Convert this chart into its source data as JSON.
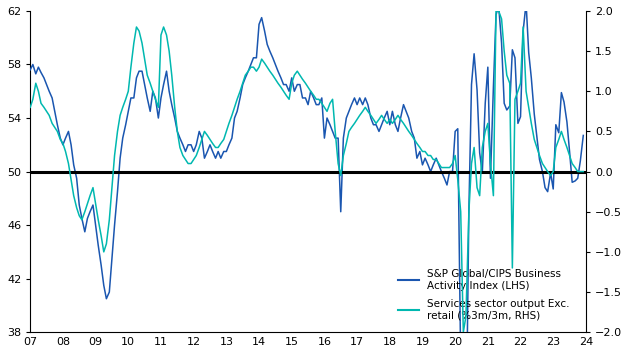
{
  "lhs_color": "#1a56b0",
  "rhs_color": "#00b8b0",
  "lhs_ylim": [
    38,
    62
  ],
  "rhs_ylim": [
    -2.0,
    2.0
  ],
  "lhs_yticks": [
    38,
    42,
    46,
    50,
    54,
    58,
    62
  ],
  "rhs_yticks": [
    -2.0,
    -1.5,
    -1.0,
    -0.5,
    0.0,
    0.5,
    1.0,
    1.5,
    2.0
  ],
  "xticks": [
    2007,
    2008,
    2009,
    2010,
    2011,
    2012,
    2013,
    2014,
    2015,
    2016,
    2017,
    2018,
    2019,
    2020,
    2021,
    2022,
    2023,
    2024
  ],
  "xlabels": [
    "07",
    "08",
    "09",
    "10",
    "11",
    "12",
    "13",
    "14",
    "15",
    "16",
    "17",
    "18",
    "19",
    "20",
    "21",
    "22",
    "23",
    "24"
  ],
  "legend_lhs": "S&P Global/CIPS Business\nActivity Index (LHS)",
  "legend_rhs": "Services sector output Exc.\nretail (%3m/3m, RHS)",
  "hline_y_lhs": 50,
  "lhs_data": [
    [
      2007.0,
      57.6
    ],
    [
      2007.08,
      58.0
    ],
    [
      2007.17,
      57.3
    ],
    [
      2007.25,
      57.8
    ],
    [
      2007.33,
      57.4
    ],
    [
      2007.42,
      57.0
    ],
    [
      2007.5,
      56.5
    ],
    [
      2007.58,
      56.0
    ],
    [
      2007.67,
      55.5
    ],
    [
      2007.75,
      54.5
    ],
    [
      2007.83,
      53.5
    ],
    [
      2007.92,
      52.5
    ],
    [
      2008.0,
      52.0
    ],
    [
      2008.08,
      52.5
    ],
    [
      2008.17,
      53.0
    ],
    [
      2008.25,
      52.0
    ],
    [
      2008.33,
      50.5
    ],
    [
      2008.42,
      49.5
    ],
    [
      2008.5,
      47.5
    ],
    [
      2008.58,
      46.5
    ],
    [
      2008.67,
      45.5
    ],
    [
      2008.75,
      46.5
    ],
    [
      2008.83,
      47.0
    ],
    [
      2008.92,
      47.5
    ],
    [
      2009.0,
      46.0
    ],
    [
      2009.08,
      44.5
    ],
    [
      2009.17,
      43.0
    ],
    [
      2009.25,
      41.5
    ],
    [
      2009.33,
      40.5
    ],
    [
      2009.42,
      41.0
    ],
    [
      2009.5,
      43.5
    ],
    [
      2009.58,
      46.0
    ],
    [
      2009.67,
      48.5
    ],
    [
      2009.75,
      51.0
    ],
    [
      2009.83,
      52.5
    ],
    [
      2009.92,
      53.5
    ],
    [
      2010.0,
      54.5
    ],
    [
      2010.08,
      55.5
    ],
    [
      2010.17,
      55.5
    ],
    [
      2010.25,
      57.0
    ],
    [
      2010.33,
      57.5
    ],
    [
      2010.42,
      57.5
    ],
    [
      2010.5,
      56.5
    ],
    [
      2010.58,
      55.5
    ],
    [
      2010.67,
      54.5
    ],
    [
      2010.75,
      56.0
    ],
    [
      2010.83,
      55.5
    ],
    [
      2010.92,
      54.0
    ],
    [
      2011.0,
      55.5
    ],
    [
      2011.08,
      56.5
    ],
    [
      2011.17,
      57.5
    ],
    [
      2011.25,
      56.0
    ],
    [
      2011.33,
      55.0
    ],
    [
      2011.42,
      54.0
    ],
    [
      2011.5,
      53.0
    ],
    [
      2011.58,
      52.5
    ],
    [
      2011.67,
      52.0
    ],
    [
      2011.75,
      51.5
    ],
    [
      2011.83,
      52.0
    ],
    [
      2011.92,
      52.0
    ],
    [
      2012.0,
      51.5
    ],
    [
      2012.08,
      52.0
    ],
    [
      2012.17,
      53.0
    ],
    [
      2012.25,
      52.5
    ],
    [
      2012.33,
      51.0
    ],
    [
      2012.42,
      51.5
    ],
    [
      2012.5,
      52.0
    ],
    [
      2012.58,
      51.5
    ],
    [
      2012.67,
      51.0
    ],
    [
      2012.75,
      51.5
    ],
    [
      2012.83,
      51.0
    ],
    [
      2012.92,
      51.5
    ],
    [
      2013.0,
      51.5
    ],
    [
      2013.08,
      52.0
    ],
    [
      2013.17,
      52.5
    ],
    [
      2013.25,
      54.0
    ],
    [
      2013.33,
      54.5
    ],
    [
      2013.42,
      55.5
    ],
    [
      2013.5,
      56.5
    ],
    [
      2013.58,
      57.0
    ],
    [
      2013.67,
      57.5
    ],
    [
      2013.75,
      58.0
    ],
    [
      2013.83,
      58.5
    ],
    [
      2013.92,
      58.5
    ],
    [
      2014.0,
      61.0
    ],
    [
      2014.08,
      61.5
    ],
    [
      2014.17,
      60.5
    ],
    [
      2014.25,
      59.5
    ],
    [
      2014.33,
      59.0
    ],
    [
      2014.42,
      58.5
    ],
    [
      2014.5,
      58.0
    ],
    [
      2014.58,
      57.5
    ],
    [
      2014.67,
      57.0
    ],
    [
      2014.75,
      56.5
    ],
    [
      2014.83,
      56.5
    ],
    [
      2014.92,
      56.0
    ],
    [
      2015.0,
      57.0
    ],
    [
      2015.08,
      56.0
    ],
    [
      2015.17,
      56.5
    ],
    [
      2015.25,
      56.5
    ],
    [
      2015.33,
      55.5
    ],
    [
      2015.42,
      55.5
    ],
    [
      2015.5,
      55.0
    ],
    [
      2015.58,
      56.0
    ],
    [
      2015.67,
      55.5
    ],
    [
      2015.75,
      55.0
    ],
    [
      2015.83,
      55.0
    ],
    [
      2015.92,
      55.5
    ],
    [
      2016.0,
      52.5
    ],
    [
      2016.08,
      54.0
    ],
    [
      2016.17,
      53.5
    ],
    [
      2016.25,
      53.0
    ],
    [
      2016.33,
      52.5
    ],
    [
      2016.42,
      52.5
    ],
    [
      2016.5,
      47.0
    ],
    [
      2016.58,
      52.5
    ],
    [
      2016.67,
      54.0
    ],
    [
      2016.75,
      54.5
    ],
    [
      2016.83,
      55.0
    ],
    [
      2016.92,
      55.5
    ],
    [
      2017.0,
      55.0
    ],
    [
      2017.08,
      55.5
    ],
    [
      2017.17,
      55.0
    ],
    [
      2017.25,
      55.5
    ],
    [
      2017.33,
      55.0
    ],
    [
      2017.42,
      54.0
    ],
    [
      2017.5,
      53.5
    ],
    [
      2017.58,
      53.5
    ],
    [
      2017.67,
      53.0
    ],
    [
      2017.75,
      53.5
    ],
    [
      2017.83,
      54.0
    ],
    [
      2017.92,
      54.5
    ],
    [
      2018.0,
      53.5
    ],
    [
      2018.08,
      54.5
    ],
    [
      2018.17,
      53.5
    ],
    [
      2018.25,
      53.0
    ],
    [
      2018.33,
      54.0
    ],
    [
      2018.42,
      55.0
    ],
    [
      2018.5,
      54.5
    ],
    [
      2018.58,
      54.0
    ],
    [
      2018.67,
      53.0
    ],
    [
      2018.75,
      52.5
    ],
    [
      2018.83,
      51.0
    ],
    [
      2018.92,
      51.5
    ],
    [
      2019.0,
      50.5
    ],
    [
      2019.08,
      51.0
    ],
    [
      2019.17,
      50.5
    ],
    [
      2019.25,
      50.0
    ],
    [
      2019.33,
      50.5
    ],
    [
      2019.42,
      51.0
    ],
    [
      2019.5,
      50.5
    ],
    [
      2019.58,
      50.0
    ],
    [
      2019.67,
      49.5
    ],
    [
      2019.75,
      49.0
    ],
    [
      2019.83,
      50.0
    ],
    [
      2019.92,
      50.0
    ],
    [
      2020.0,
      53.0
    ],
    [
      2020.08,
      53.2
    ],
    [
      2020.17,
      35.7
    ],
    [
      2020.25,
      13.4
    ],
    [
      2020.33,
      29.0
    ],
    [
      2020.42,
      47.1
    ],
    [
      2020.5,
      56.5
    ],
    [
      2020.58,
      58.8
    ],
    [
      2020.67,
      56.1
    ],
    [
      2020.75,
      51.4
    ],
    [
      2020.83,
      49.9
    ],
    [
      2020.92,
      55.1
    ],
    [
      2021.0,
      57.8
    ],
    [
      2021.08,
      49.5
    ],
    [
      2021.17,
      56.3
    ],
    [
      2021.25,
      61.7
    ],
    [
      2021.33,
      62.4
    ],
    [
      2021.42,
      59.6
    ],
    [
      2021.5,
      55.1
    ],
    [
      2021.58,
      54.6
    ],
    [
      2021.67,
      54.9
    ],
    [
      2021.75,
      59.1
    ],
    [
      2021.83,
      58.5
    ],
    [
      2021.92,
      53.6
    ],
    [
      2022.0,
      54.1
    ],
    [
      2022.08,
      60.5
    ],
    [
      2022.17,
      62.6
    ],
    [
      2022.25,
      58.9
    ],
    [
      2022.33,
      57.0
    ],
    [
      2022.42,
      54.3
    ],
    [
      2022.5,
      52.6
    ],
    [
      2022.58,
      50.9
    ],
    [
      2022.67,
      50.0
    ],
    [
      2022.75,
      48.8
    ],
    [
      2022.83,
      48.5
    ],
    [
      2022.92,
      49.9
    ],
    [
      2023.0,
      48.7
    ],
    [
      2023.08,
      53.5
    ],
    [
      2023.17,
      52.9
    ],
    [
      2023.25,
      55.9
    ],
    [
      2023.33,
      55.2
    ],
    [
      2023.42,
      53.7
    ],
    [
      2023.5,
      51.5
    ],
    [
      2023.58,
      49.2
    ],
    [
      2023.67,
      49.3
    ],
    [
      2023.75,
      49.5
    ],
    [
      2023.83,
      50.8
    ],
    [
      2023.92,
      52.7
    ]
  ],
  "rhs_data": [
    [
      2007.0,
      0.8
    ],
    [
      2007.08,
      0.9
    ],
    [
      2007.17,
      1.1
    ],
    [
      2007.25,
      1.0
    ],
    [
      2007.33,
      0.85
    ],
    [
      2007.42,
      0.8
    ],
    [
      2007.5,
      0.75
    ],
    [
      2007.58,
      0.7
    ],
    [
      2007.67,
      0.6
    ],
    [
      2007.75,
      0.55
    ],
    [
      2007.83,
      0.5
    ],
    [
      2007.92,
      0.4
    ],
    [
      2008.0,
      0.35
    ],
    [
      2008.08,
      0.25
    ],
    [
      2008.17,
      0.1
    ],
    [
      2008.25,
      -0.1
    ],
    [
      2008.33,
      -0.3
    ],
    [
      2008.42,
      -0.45
    ],
    [
      2008.5,
      -0.55
    ],
    [
      2008.58,
      -0.6
    ],
    [
      2008.67,
      -0.5
    ],
    [
      2008.75,
      -0.4
    ],
    [
      2008.83,
      -0.3
    ],
    [
      2008.92,
      -0.2
    ],
    [
      2009.0,
      -0.4
    ],
    [
      2009.08,
      -0.6
    ],
    [
      2009.17,
      -0.8
    ],
    [
      2009.25,
      -1.0
    ],
    [
      2009.33,
      -0.9
    ],
    [
      2009.42,
      -0.6
    ],
    [
      2009.5,
      -0.2
    ],
    [
      2009.58,
      0.2
    ],
    [
      2009.67,
      0.5
    ],
    [
      2009.75,
      0.7
    ],
    [
      2009.83,
      0.8
    ],
    [
      2009.92,
      0.9
    ],
    [
      2010.0,
      1.0
    ],
    [
      2010.08,
      1.3
    ],
    [
      2010.17,
      1.6
    ],
    [
      2010.25,
      1.8
    ],
    [
      2010.33,
      1.75
    ],
    [
      2010.42,
      1.6
    ],
    [
      2010.5,
      1.4
    ],
    [
      2010.58,
      1.2
    ],
    [
      2010.67,
      1.1
    ],
    [
      2010.75,
      1.0
    ],
    [
      2010.83,
      0.9
    ],
    [
      2010.92,
      0.8
    ],
    [
      2011.0,
      1.7
    ],
    [
      2011.08,
      1.8
    ],
    [
      2011.17,
      1.7
    ],
    [
      2011.25,
      1.5
    ],
    [
      2011.33,
      1.2
    ],
    [
      2011.42,
      0.8
    ],
    [
      2011.5,
      0.5
    ],
    [
      2011.58,
      0.3
    ],
    [
      2011.67,
      0.2
    ],
    [
      2011.75,
      0.15
    ],
    [
      2011.83,
      0.1
    ],
    [
      2011.92,
      0.1
    ],
    [
      2012.0,
      0.15
    ],
    [
      2012.08,
      0.2
    ],
    [
      2012.17,
      0.3
    ],
    [
      2012.25,
      0.4
    ],
    [
      2012.33,
      0.5
    ],
    [
      2012.42,
      0.45
    ],
    [
      2012.5,
      0.4
    ],
    [
      2012.58,
      0.35
    ],
    [
      2012.67,
      0.3
    ],
    [
      2012.75,
      0.3
    ],
    [
      2012.83,
      0.35
    ],
    [
      2012.92,
      0.4
    ],
    [
      2013.0,
      0.5
    ],
    [
      2013.08,
      0.6
    ],
    [
      2013.17,
      0.7
    ],
    [
      2013.25,
      0.8
    ],
    [
      2013.33,
      0.9
    ],
    [
      2013.42,
      1.0
    ],
    [
      2013.5,
      1.1
    ],
    [
      2013.58,
      1.2
    ],
    [
      2013.67,
      1.25
    ],
    [
      2013.75,
      1.3
    ],
    [
      2013.83,
      1.3
    ],
    [
      2013.92,
      1.25
    ],
    [
      2014.0,
      1.3
    ],
    [
      2014.08,
      1.4
    ],
    [
      2014.17,
      1.35
    ],
    [
      2014.25,
      1.3
    ],
    [
      2014.33,
      1.25
    ],
    [
      2014.42,
      1.2
    ],
    [
      2014.5,
      1.15
    ],
    [
      2014.58,
      1.1
    ],
    [
      2014.67,
      1.05
    ],
    [
      2014.75,
      1.0
    ],
    [
      2014.83,
      0.95
    ],
    [
      2014.92,
      0.9
    ],
    [
      2015.0,
      1.1
    ],
    [
      2015.08,
      1.2
    ],
    [
      2015.17,
      1.25
    ],
    [
      2015.25,
      1.2
    ],
    [
      2015.33,
      1.15
    ],
    [
      2015.42,
      1.1
    ],
    [
      2015.5,
      1.05
    ],
    [
      2015.58,
      1.0
    ],
    [
      2015.67,
      0.95
    ],
    [
      2015.75,
      0.9
    ],
    [
      2015.83,
      0.9
    ],
    [
      2015.92,
      0.85
    ],
    [
      2016.0,
      0.8
    ],
    [
      2016.08,
      0.75
    ],
    [
      2016.17,
      0.85
    ],
    [
      2016.25,
      0.9
    ],
    [
      2016.33,
      0.5
    ],
    [
      2016.42,
      0.1
    ],
    [
      2016.5,
      -0.05
    ],
    [
      2016.58,
      0.2
    ],
    [
      2016.67,
      0.35
    ],
    [
      2016.75,
      0.5
    ],
    [
      2016.83,
      0.55
    ],
    [
      2016.92,
      0.6
    ],
    [
      2017.0,
      0.65
    ],
    [
      2017.08,
      0.7
    ],
    [
      2017.17,
      0.75
    ],
    [
      2017.25,
      0.8
    ],
    [
      2017.33,
      0.75
    ],
    [
      2017.42,
      0.7
    ],
    [
      2017.5,
      0.65
    ],
    [
      2017.58,
      0.6
    ],
    [
      2017.67,
      0.65
    ],
    [
      2017.75,
      0.7
    ],
    [
      2017.83,
      0.65
    ],
    [
      2017.92,
      0.6
    ],
    [
      2018.0,
      0.65
    ],
    [
      2018.08,
      0.6
    ],
    [
      2018.17,
      0.65
    ],
    [
      2018.25,
      0.7
    ],
    [
      2018.33,
      0.65
    ],
    [
      2018.42,
      0.6
    ],
    [
      2018.5,
      0.55
    ],
    [
      2018.58,
      0.5
    ],
    [
      2018.67,
      0.45
    ],
    [
      2018.75,
      0.4
    ],
    [
      2018.83,
      0.35
    ],
    [
      2018.92,
      0.3
    ],
    [
      2019.0,
      0.25
    ],
    [
      2019.08,
      0.25
    ],
    [
      2019.17,
      0.2
    ],
    [
      2019.25,
      0.2
    ],
    [
      2019.33,
      0.15
    ],
    [
      2019.42,
      0.15
    ],
    [
      2019.5,
      0.1
    ],
    [
      2019.58,
      0.05
    ],
    [
      2019.67,
      0.05
    ],
    [
      2019.75,
      0.05
    ],
    [
      2019.83,
      0.05
    ],
    [
      2019.92,
      0.1
    ],
    [
      2020.0,
      0.2
    ],
    [
      2020.08,
      -0.1
    ],
    [
      2020.17,
      -0.5
    ],
    [
      2020.25,
      -2.0
    ],
    [
      2020.33,
      -1.8
    ],
    [
      2020.42,
      -0.5
    ],
    [
      2020.5,
      0.1
    ],
    [
      2020.58,
      0.3
    ],
    [
      2020.67,
      -0.2
    ],
    [
      2020.75,
      -0.3
    ],
    [
      2020.83,
      0.3
    ],
    [
      2020.92,
      0.5
    ],
    [
      2021.0,
      0.6
    ],
    [
      2021.08,
      0.1
    ],
    [
      2021.17,
      -0.3
    ],
    [
      2021.25,
      2.0
    ],
    [
      2021.33,
      2.0
    ],
    [
      2021.42,
      1.9
    ],
    [
      2021.5,
      1.5
    ],
    [
      2021.58,
      1.2
    ],
    [
      2021.67,
      1.1
    ],
    [
      2021.75,
      -1.2
    ],
    [
      2021.83,
      0.9
    ],
    [
      2021.92,
      1.0
    ],
    [
      2022.0,
      1.1
    ],
    [
      2022.08,
      1.8
    ],
    [
      2022.17,
      1.0
    ],
    [
      2022.25,
      0.8
    ],
    [
      2022.33,
      0.6
    ],
    [
      2022.42,
      0.4
    ],
    [
      2022.5,
      0.3
    ],
    [
      2022.58,
      0.2
    ],
    [
      2022.67,
      0.1
    ],
    [
      2022.75,
      0.05
    ],
    [
      2022.83,
      0.0
    ],
    [
      2022.92,
      -0.05
    ],
    [
      2023.0,
      0.0
    ],
    [
      2023.08,
      0.3
    ],
    [
      2023.17,
      0.4
    ],
    [
      2023.25,
      0.5
    ],
    [
      2023.33,
      0.4
    ],
    [
      2023.42,
      0.3
    ],
    [
      2023.5,
      0.2
    ],
    [
      2023.58,
      0.1
    ],
    [
      2023.67,
      0.05
    ],
    [
      2023.75,
      0.0
    ],
    [
      2023.83,
      0.0
    ],
    [
      2023.92,
      0.0
    ]
  ]
}
